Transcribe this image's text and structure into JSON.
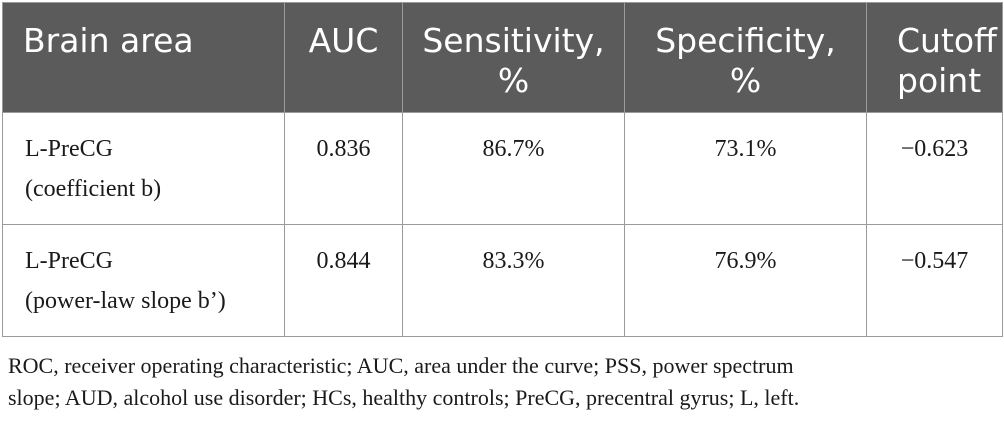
{
  "table": {
    "headers": {
      "brain_area": "Brain area",
      "auc": "AUC",
      "sensitivity": [
        "Sensitivity,",
        "%"
      ],
      "specificity": [
        "Specificity,",
        "%"
      ],
      "cutoff": [
        "Cutoff",
        "point"
      ]
    },
    "rows": [
      {
        "area_lines": [
          "L-PreCG",
          "(coefficient b)"
        ],
        "auc": "0.836",
        "sensitivity": "86.7%",
        "specificity": "73.1%",
        "cutoff": "−0.623"
      },
      {
        "area_lines": [
          "L-PreCG",
          "(power-law slope b’)"
        ],
        "auc": "0.844",
        "sensitivity": "83.3%",
        "specificity": "76.9%",
        "cutoff": "−0.547"
      }
    ]
  },
  "footnote": {
    "line1": "ROC, receiver operating characteristic; AUC, area under the curve; PSS, power spectrum",
    "line2": "slope; AUD, alcohol use disorder; HCs, healthy controls; PreCG, precentral gyrus; L, left."
  }
}
